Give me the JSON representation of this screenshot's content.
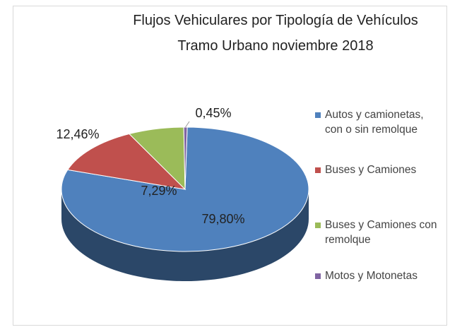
{
  "chart_data": {
    "type": "pie",
    "title": "Flujos Vehiculares por Tipología de Vehículos",
    "subtitle": "Tramo Urbano noviembre 2018",
    "categories": [
      "Autos y camionetas, con o sin remolque",
      "Buses y Camiones",
      "Buses y Camiones con remolque",
      "Motos y Motonetas"
    ],
    "values": [
      79.8,
      12.46,
      7.29,
      0.45
    ],
    "value_labels": [
      "79,80%",
      "12,46%",
      "7,29%",
      "0,45%"
    ],
    "colors": [
      "#4f81bd",
      "#c0504d",
      "#9bbb59",
      "#8064a2"
    ],
    "legend": "right"
  }
}
